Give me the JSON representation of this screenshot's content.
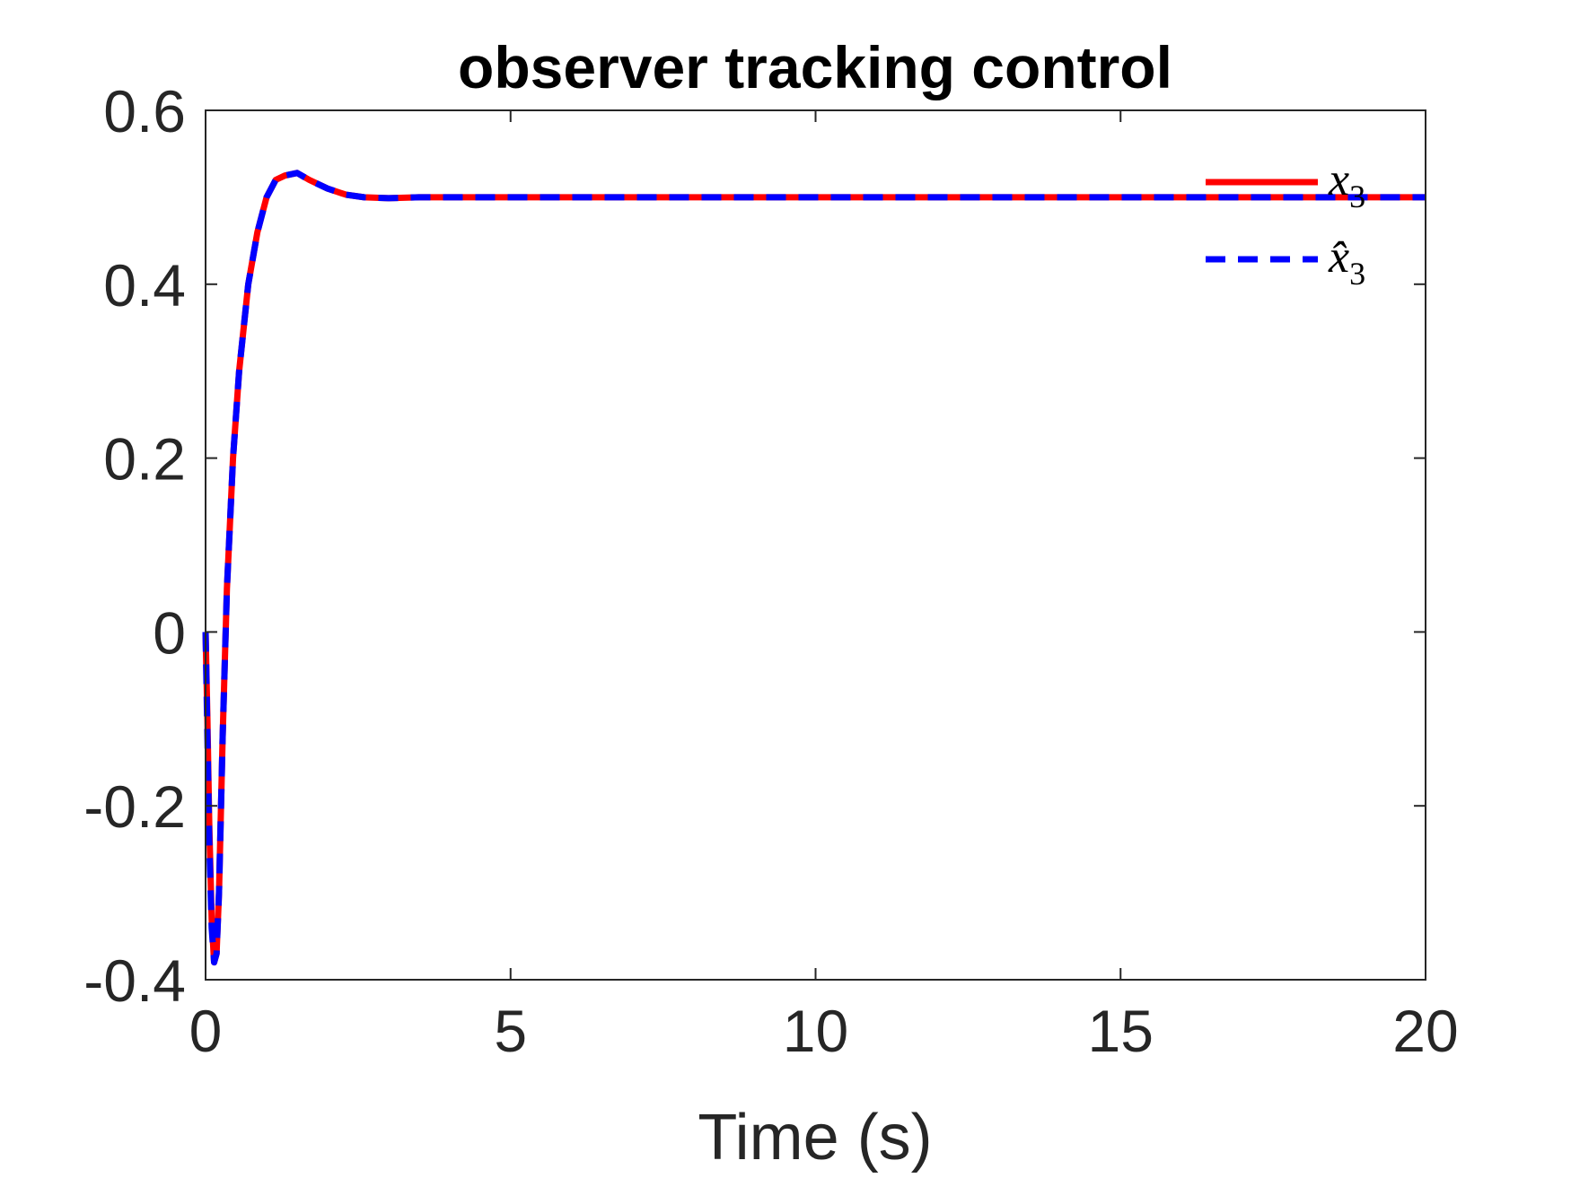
{
  "chart_data": {
    "type": "line",
    "title": "observer tracking control",
    "xlabel": "Time (s)",
    "ylabel": "",
    "xlim": [
      0,
      20
    ],
    "ylim": [
      -0.4,
      0.6
    ],
    "xticks": [
      0,
      5,
      10,
      15,
      20
    ],
    "xtick_labels": [
      "0",
      "5",
      "10",
      "15",
      "20"
    ],
    "yticks": [
      -0.4,
      -0.2,
      0,
      0.2,
      0.4,
      0.6
    ],
    "ytick_labels": [
      "-0.4",
      "-0.2",
      "0",
      "0.2",
      "0.4",
      "0.6"
    ],
    "grid": false,
    "legend_position": "top-right",
    "series": [
      {
        "name": "x3",
        "legend_main": "x",
        "legend_sub": "3",
        "color": "#ff0000",
        "style": "solid",
        "x": [
          0,
          0.03,
          0.06,
          0.1,
          0.14,
          0.18,
          0.22,
          0.28,
          0.35,
          0.45,
          0.55,
          0.7,
          0.85,
          1.0,
          1.15,
          1.3,
          1.5,
          1.7,
          2.0,
          2.3,
          2.6,
          3.0,
          3.5,
          4.0,
          5.0,
          6.0,
          8.0,
          10.0,
          12.0,
          15.0,
          18.0,
          20.0
        ],
        "y": [
          0.0,
          -0.1,
          -0.22,
          -0.33,
          -0.38,
          -0.37,
          -0.3,
          -0.12,
          0.05,
          0.2,
          0.3,
          0.4,
          0.46,
          0.5,
          0.52,
          0.525,
          0.528,
          0.52,
          0.51,
          0.503,
          0.5,
          0.499,
          0.5,
          0.5,
          0.5,
          0.5,
          0.5,
          0.5,
          0.5,
          0.5,
          0.5,
          0.5
        ]
      },
      {
        "name": "x̂3",
        "legend_main": "x̂",
        "legend_sub": "3",
        "color": "#0000ff",
        "style": "dashed",
        "x": [
          0,
          0.03,
          0.06,
          0.1,
          0.14,
          0.18,
          0.22,
          0.28,
          0.35,
          0.45,
          0.55,
          0.7,
          0.85,
          1.0,
          1.15,
          1.3,
          1.5,
          1.7,
          2.0,
          2.3,
          2.6,
          3.0,
          3.5,
          4.0,
          5.0,
          6.0,
          8.0,
          10.0,
          12.0,
          15.0,
          18.0,
          20.0
        ],
        "y": [
          0.0,
          -0.12,
          -0.24,
          -0.34,
          -0.38,
          -0.37,
          -0.3,
          -0.12,
          0.05,
          0.2,
          0.3,
          0.4,
          0.46,
          0.5,
          0.52,
          0.525,
          0.528,
          0.52,
          0.51,
          0.503,
          0.5,
          0.499,
          0.5,
          0.5,
          0.5,
          0.5,
          0.5,
          0.5,
          0.5,
          0.5,
          0.5,
          0.5
        ]
      }
    ]
  }
}
